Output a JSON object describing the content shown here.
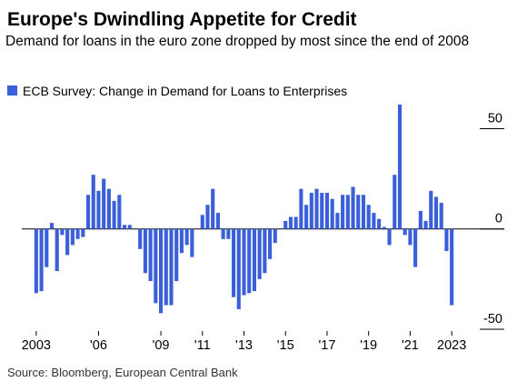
{
  "chart_data": {
    "type": "bar",
    "title": "Europe's Dwindling Appetite for Credit",
    "subtitle": "Demand for loans in the euro zone dropped by most since the end of 2008",
    "source": "Source: Bloomberg, European Central Bank",
    "categories": [
      "2003",
      null,
      null,
      null,
      null,
      null,
      null,
      null,
      null,
      null,
      null,
      null,
      "'06",
      null,
      null,
      null,
      null,
      null,
      null,
      null,
      null,
      null,
      null,
      null,
      "'09",
      null,
      null,
      null,
      null,
      null,
      null,
      null,
      "'11",
      null,
      null,
      null,
      null,
      null,
      null,
      null,
      "'13",
      null,
      null,
      null,
      null,
      null,
      null,
      null,
      "'15",
      null,
      null,
      null,
      null,
      null,
      null,
      null,
      "'17",
      null,
      null,
      null,
      null,
      null,
      null,
      null,
      "'19",
      null,
      null,
      null,
      null,
      null,
      null,
      null,
      "'21",
      null,
      null,
      null,
      null,
      null,
      null,
      null,
      "2023"
    ],
    "series": [
      {
        "name": "ECB Survey: Change in Demand for Loans to Enterprises",
        "color": "#3a5fd9",
        "values": [
          -32,
          -31,
          -19,
          3,
          -21,
          -3,
          -13,
          -8,
          -5,
          -4,
          17,
          27,
          19,
          25,
          20,
          14,
          17,
          2,
          2,
          0,
          -10,
          -22,
          -26,
          -37,
          -42,
          -38,
          -38,
          -26,
          -12,
          -8,
          -14,
          0,
          7,
          12,
          20,
          8,
          -5,
          -5,
          -34,
          -40,
          -33,
          -32,
          -31,
          -25,
          -22,
          -15,
          -7,
          0,
          4,
          6,
          6,
          20,
          12,
          18,
          20,
          18,
          18,
          15,
          8,
          17,
          17,
          21,
          17,
          17,
          12,
          8,
          5,
          1,
          -8,
          27,
          62,
          -3,
          -8,
          -19,
          9,
          4,
          19,
          16,
          13,
          -11,
          -38
        ]
      }
    ],
    "ylim": [
      -50,
      62
    ],
    "yticks": [
      -50,
      0,
      50
    ]
  }
}
